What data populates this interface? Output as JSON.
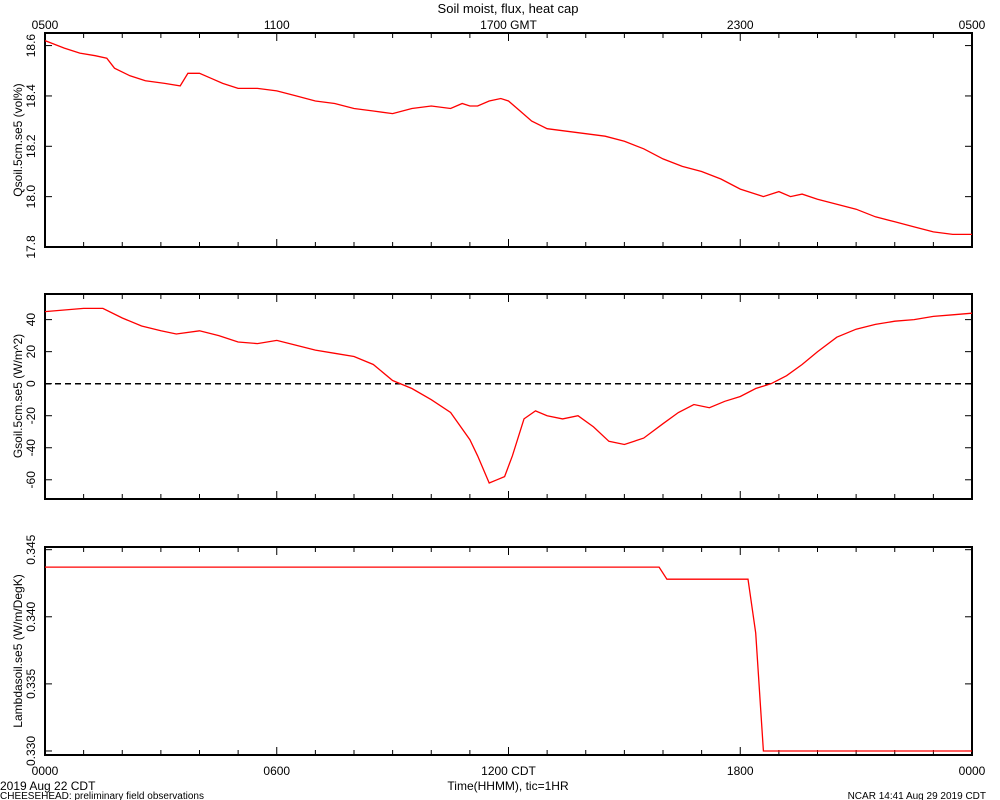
{
  "title": "Soil moist, flux, heat cap",
  "top_axis": {
    "tick_labels": [
      "0500",
      "1100",
      "1700 GMT",
      "2300",
      "0500"
    ]
  },
  "bottom_axis": {
    "tick_labels": [
      "0000",
      "0600",
      "1200 CDT",
      "1800",
      "0000"
    ],
    "label": "Time(HHMM), tic=1HR"
  },
  "footer": {
    "date": "2019 Aug 22 CDT",
    "project": "CHEESEHEAD: preliminary field observations",
    "stamp": "NCAR 14:41 Aug 29 2019 CDT"
  },
  "colors": {
    "series": "#ff0000",
    "axis": "#000000",
    "zero_line": "#000000"
  },
  "chart_data": [
    {
      "type": "line",
      "ylabel": "Qsoil.5cm.se5 (vol%)",
      "ylim": [
        17.8,
        18.65
      ],
      "yticks": [
        17.8,
        18.0,
        18.2,
        18.4,
        18.6
      ],
      "ytick_labels": [
        "17.8",
        "18.0",
        "18.2",
        "18.4",
        "18.6"
      ],
      "xlim": [
        0,
        24
      ],
      "x": [
        0,
        0.5,
        0.9,
        1.3,
        1.6,
        1.8,
        2.2,
        2.6,
        3.1,
        3.5,
        3.7,
        4.0,
        4.3,
        4.6,
        5.0,
        5.5,
        6.0,
        6.5,
        7.0,
        7.5,
        8.0,
        8.5,
        9.0,
        9.5,
        10.0,
        10.5,
        10.8,
        11.0,
        11.2,
        11.5,
        11.8,
        12.0,
        12.3,
        12.6,
        13.0,
        13.5,
        14.0,
        14.5,
        15.0,
        15.5,
        16.0,
        16.5,
        17.0,
        17.5,
        18.0,
        18.6,
        19.0,
        19.3,
        19.6,
        20.0,
        20.5,
        21.0,
        21.5,
        22.0,
        22.5,
        23.0,
        23.5,
        24.0
      ],
      "y": [
        18.62,
        18.59,
        18.57,
        18.56,
        18.55,
        18.51,
        18.48,
        18.46,
        18.45,
        18.44,
        18.49,
        18.49,
        18.47,
        18.45,
        18.43,
        18.43,
        18.42,
        18.4,
        18.38,
        18.37,
        18.35,
        18.34,
        18.33,
        18.35,
        18.36,
        18.35,
        18.37,
        18.36,
        18.36,
        18.38,
        18.39,
        18.38,
        18.34,
        18.3,
        18.27,
        18.26,
        18.25,
        18.24,
        18.22,
        18.19,
        18.15,
        18.12,
        18.1,
        18.07,
        18.03,
        18.0,
        18.02,
        18.0,
        18.01,
        17.99,
        17.97,
        17.95,
        17.92,
        17.9,
        17.88,
        17.86,
        17.85,
        17.85
      ]
    },
    {
      "type": "line",
      "ylabel": "Gsoil.5cm.se5 (W/m^2)",
      "ylim": [
        -72,
        56
      ],
      "yticks": [
        -60,
        -40,
        -20,
        0,
        20,
        40
      ],
      "ytick_labels": [
        "-60",
        "-40",
        "-20",
        "0",
        "20",
        "40"
      ],
      "zero_line": 0,
      "xlim": [
        0,
        24
      ],
      "x": [
        0,
        0.5,
        1.0,
        1.5,
        2.0,
        2.5,
        3.0,
        3.4,
        4.0,
        4.5,
        5.0,
        5.5,
        6.0,
        6.5,
        7.0,
        7.5,
        8.0,
        8.5,
        9.0,
        9.5,
        10.0,
        10.5,
        11.0,
        11.2,
        11.5,
        11.7,
        11.9,
        12.1,
        12.4,
        12.7,
        13.0,
        13.4,
        13.8,
        14.2,
        14.6,
        15.0,
        15.5,
        16.0,
        16.4,
        16.8,
        17.2,
        17.6,
        18.0,
        18.4,
        18.8,
        19.2,
        19.6,
        20.0,
        20.5,
        21.0,
        21.5,
        22.0,
        22.5,
        23.0,
        23.5,
        24.0
      ],
      "y": [
        45,
        46,
        47,
        47,
        41,
        36,
        33,
        31,
        33,
        30,
        26,
        25,
        27,
        24,
        21,
        19,
        17,
        12,
        2,
        -3,
        -10,
        -18,
        -35,
        -45,
        -62,
        -60,
        -58,
        -45,
        -22,
        -17,
        -20,
        -22,
        -20,
        -27,
        -36,
        -38,
        -34,
        -25,
        -18,
        -13,
        -15,
        -11,
        -8,
        -3,
        0,
        5,
        12,
        20,
        29,
        34,
        37,
        39,
        40,
        42,
        43,
        44
      ]
    },
    {
      "type": "line",
      "ylabel": "Lambdasoil.se5 (W/m/DegK)",
      "ylim": [
        0.3297,
        0.3452
      ],
      "yticks": [
        0.33,
        0.335,
        0.34,
        0.345
      ],
      "ytick_labels": [
        "0.330",
        "0.335",
        "0.340",
        "0.345"
      ],
      "xlim": [
        0,
        24
      ],
      "x": [
        0,
        15.9,
        16.1,
        18.2,
        18.4,
        18.6,
        24.0
      ],
      "y": [
        0.3437,
        0.3437,
        0.3428,
        0.3428,
        0.3388,
        0.33,
        0.33
      ]
    }
  ]
}
